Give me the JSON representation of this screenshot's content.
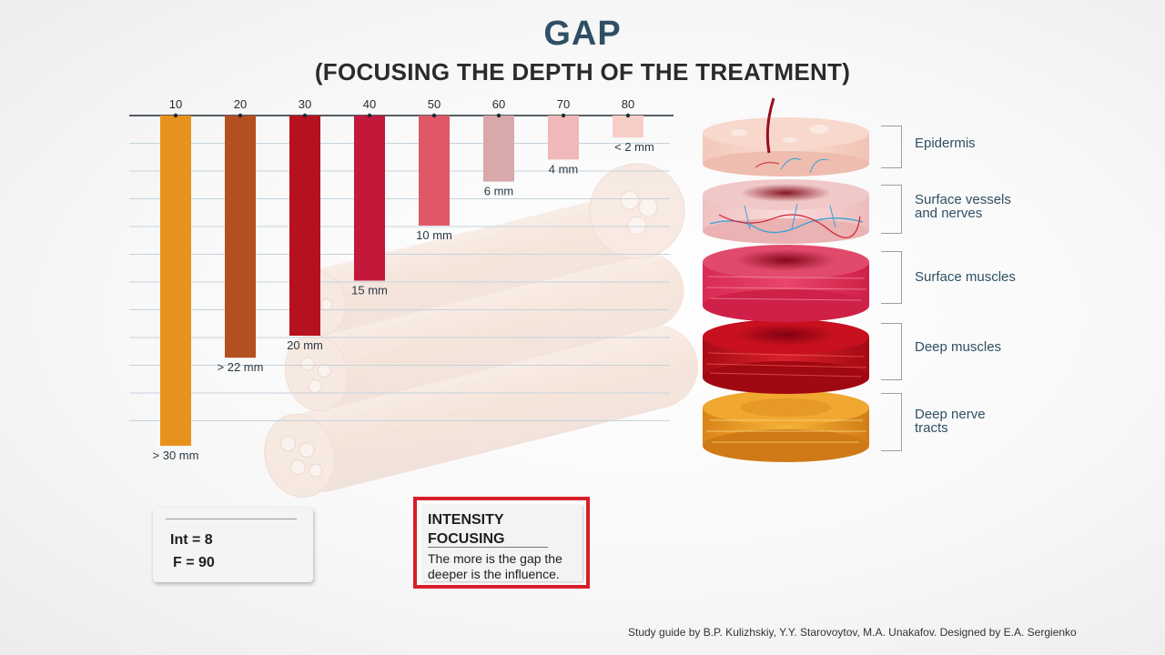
{
  "title": "GAP",
  "subtitle": "(FOCUSING THE DEPTH OF THE TREATMENT)",
  "chart_data": {
    "type": "bar",
    "categories": [
      "10",
      "20",
      "30",
      "40",
      "50",
      "60",
      "70",
      "80"
    ],
    "values": [
      30,
      22,
      20,
      15,
      10,
      6,
      4,
      2
    ],
    "value_labels": [
      "> 30 mm",
      "> 22 mm",
      "20 mm",
      "15 mm",
      "10 mm",
      "6 mm",
      "4 mm",
      "< 2 mm"
    ],
    "colors": [
      "#e8921e",
      "#b4501f",
      "#b5121e",
      "#c3183a",
      "#e05868",
      "#d8a8aa",
      "#f0b8b8",
      "#f7cec7"
    ],
    "xaxis_position": "top",
    "grid": true,
    "ylim": [
      0,
      30
    ]
  },
  "layers": [
    {
      "name": "Epidermis"
    },
    {
      "name": "Surface vessels and nerves",
      "lines": [
        "Surface vessels",
        "and nerves"
      ]
    },
    {
      "name": "Surface muscles"
    },
    {
      "name": "Deep muscles"
    },
    {
      "name": "Deep nerve tracts",
      "lines": [
        "Deep nerve",
        "tracts"
      ]
    }
  ],
  "params": {
    "int": "Int = 8",
    "f": "F = 90"
  },
  "focus_box": {
    "title_lines": [
      "INTENSITY",
      "FOCUSING"
    ],
    "desc_lines": [
      "The more is the gap the",
      "deeper is the influence."
    ],
    "border_color": "#d81e2a"
  },
  "credits": "Study guide by B.P. Kulizhskiy,  Y.Y. Starovoytov, M.A. Unakafov. Designed by E.A. Sergienko"
}
